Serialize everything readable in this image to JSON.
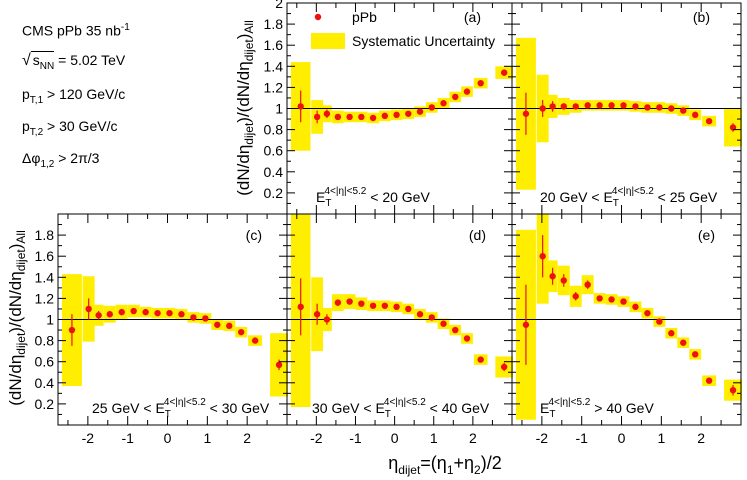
{
  "figure": {
    "experiment": "CMS",
    "system": "pPb",
    "luminosity": "35",
    "lumi_unit": "nb",
    "lumi_exp": "-1",
    "energy_label": "s",
    "energy_sub": "NN",
    "energy_value": "= 5.02 TeV",
    "cut1_label": "p",
    "cut1_sub": "T,1",
    "cut1_value": "> 120 GeV/c",
    "cut2_label": "p",
    "cut2_sub": "T,2",
    "cut2_value": "> 30 GeV/c",
    "cut3_label": "Δφ",
    "cut3_sub": "1,2",
    "cut3_value": "> 2π/3",
    "legend": {
      "marker_label": "pPb",
      "band_label": "Systematic Uncertainty"
    },
    "ylabel": {
      "main": "(dN/dη",
      "sub1": "dijet",
      "mid": ")/(dN/dη",
      "sub2": "dijet",
      "end": ")",
      "sub3": "All"
    },
    "xlabel": {
      "eta": "η",
      "sub": "dijet",
      "rest": "=(η",
      "s1": "1",
      "plus": "+η",
      "s2": "2",
      "end": ")/2"
    }
  },
  "chart_data": [
    {
      "type": "scatter",
      "panel": "(a)",
      "label_lo": "",
      "label_hi": "< 20 GeV",
      "et_sup": "4<|η|<5.2",
      "xlim": [
        -2.75,
        3.0
      ],
      "ylim": [
        0,
        2.0
      ],
      "yticks": [
        0.2,
        0.4,
        0.6,
        0.8,
        1,
        1.2,
        1.4,
        1.6,
        1.8,
        2
      ],
      "xticks": [
        -2,
        -1,
        0,
        1,
        2
      ],
      "points": [
        {
          "x": -2.4,
          "y": 1.02,
          "stat": 0.15,
          "sys": 0.42,
          "w": 0.5
        },
        {
          "x": -1.98,
          "y": 0.92,
          "stat": 0.06,
          "sys": 0.16,
          "w": 0.3
        },
        {
          "x": -1.73,
          "y": 0.95,
          "stat": 0.04,
          "sys": 0.08,
          "w": 0.25
        },
        {
          "x": -1.45,
          "y": 0.92,
          "stat": 0.02,
          "sys": 0.06,
          "w": 0.3
        },
        {
          "x": -1.15,
          "y": 0.92,
          "stat": 0.02,
          "sys": 0.05,
          "w": 0.3
        },
        {
          "x": -0.85,
          "y": 0.92,
          "stat": 0.02,
          "sys": 0.05,
          "w": 0.3
        },
        {
          "x": -0.55,
          "y": 0.91,
          "stat": 0.02,
          "sys": 0.05,
          "w": 0.3
        },
        {
          "x": -0.25,
          "y": 0.93,
          "stat": 0.02,
          "sys": 0.05,
          "w": 0.3
        },
        {
          "x": 0.05,
          "y": 0.94,
          "stat": 0.02,
          "sys": 0.05,
          "w": 0.3
        },
        {
          "x": 0.35,
          "y": 0.95,
          "stat": 0.02,
          "sys": 0.05,
          "w": 0.3
        },
        {
          "x": 0.65,
          "y": 0.97,
          "stat": 0.02,
          "sys": 0.05,
          "w": 0.3
        },
        {
          "x": 0.95,
          "y": 1.01,
          "stat": 0.02,
          "sys": 0.05,
          "w": 0.3
        },
        {
          "x": 1.25,
          "y": 1.05,
          "stat": 0.02,
          "sys": 0.05,
          "w": 0.3
        },
        {
          "x": 1.55,
          "y": 1.11,
          "stat": 0.02,
          "sys": 0.05,
          "w": 0.3
        },
        {
          "x": 1.85,
          "y": 1.16,
          "stat": 0.02,
          "sys": 0.05,
          "w": 0.3
        },
        {
          "x": 2.2,
          "y": 1.24,
          "stat": 0.02,
          "sys": 0.05,
          "w": 0.35
        },
        {
          "x": 2.8,
          "y": 1.34,
          "stat": 0.03,
          "sys": 0.06,
          "w": 0.45
        }
      ]
    },
    {
      "type": "scatter",
      "panel": "(b)",
      "label_lo": "20 GeV <",
      "label_hi": "< 25 GeV",
      "et_sup": "4<|η|<5.2",
      "xlim": [
        -2.75,
        3.0
      ],
      "ylim": [
        0,
        2.0
      ],
      "yticks": [],
      "xticks": [
        -2,
        -1,
        0,
        1,
        2
      ],
      "points": [
        {
          "x": -2.4,
          "y": 0.95,
          "stat": 0.2,
          "sys": 0.72,
          "w": 0.5
        },
        {
          "x": -1.98,
          "y": 1.0,
          "stat": 0.08,
          "sys": 0.32,
          "w": 0.3
        },
        {
          "x": -1.73,
          "y": 1.02,
          "stat": 0.05,
          "sys": 0.11,
          "w": 0.25
        },
        {
          "x": -1.45,
          "y": 1.02,
          "stat": 0.03,
          "sys": 0.08,
          "w": 0.3
        },
        {
          "x": -1.15,
          "y": 1.02,
          "stat": 0.02,
          "sys": 0.06,
          "w": 0.3
        },
        {
          "x": -0.85,
          "y": 1.03,
          "stat": 0.02,
          "sys": 0.05,
          "w": 0.3
        },
        {
          "x": -0.55,
          "y": 1.03,
          "stat": 0.02,
          "sys": 0.05,
          "w": 0.3
        },
        {
          "x": -0.25,
          "y": 1.03,
          "stat": 0.02,
          "sys": 0.05,
          "w": 0.3
        },
        {
          "x": 0.05,
          "y": 1.03,
          "stat": 0.02,
          "sys": 0.05,
          "w": 0.3
        },
        {
          "x": 0.35,
          "y": 1.02,
          "stat": 0.02,
          "sys": 0.05,
          "w": 0.3
        },
        {
          "x": 0.65,
          "y": 1.01,
          "stat": 0.02,
          "sys": 0.05,
          "w": 0.3
        },
        {
          "x": 0.95,
          "y": 1.01,
          "stat": 0.02,
          "sys": 0.05,
          "w": 0.3
        },
        {
          "x": 1.25,
          "y": 1.0,
          "stat": 0.02,
          "sys": 0.05,
          "w": 0.3
        },
        {
          "x": 1.55,
          "y": 0.98,
          "stat": 0.02,
          "sys": 0.05,
          "w": 0.3
        },
        {
          "x": 1.85,
          "y": 0.94,
          "stat": 0.02,
          "sys": 0.05,
          "w": 0.3
        },
        {
          "x": 2.2,
          "y": 0.88,
          "stat": 0.02,
          "sys": 0.05,
          "w": 0.35
        },
        {
          "x": 2.8,
          "y": 0.82,
          "stat": 0.04,
          "sys": 0.18,
          "w": 0.45
        }
      ]
    },
    {
      "type": "scatter",
      "panel": "(c)",
      "label_lo": "25 GeV <",
      "label_hi": "< 30 GeV",
      "et_sup": "4<|η|<5.2",
      "xlim": [
        -2.75,
        3.0
      ],
      "ylim": [
        0,
        2.0
      ],
      "yticks": [
        0.2,
        0.4,
        0.6,
        0.8,
        1,
        1.2,
        1.4,
        1.6,
        1.8
      ],
      "xticks": [
        -2,
        -1,
        0,
        1,
        2
      ],
      "points": [
        {
          "x": -2.4,
          "y": 0.9,
          "stat": 0.15,
          "sys": 0.53,
          "w": 0.5
        },
        {
          "x": -1.98,
          "y": 1.1,
          "stat": 0.1,
          "sys": 0.31,
          "w": 0.3
        },
        {
          "x": -1.73,
          "y": 1.04,
          "stat": 0.04,
          "sys": 0.1,
          "w": 0.25
        },
        {
          "x": -1.45,
          "y": 1.05,
          "stat": 0.03,
          "sys": 0.08,
          "w": 0.3
        },
        {
          "x": -1.15,
          "y": 1.07,
          "stat": 0.02,
          "sys": 0.07,
          "w": 0.3
        },
        {
          "x": -0.85,
          "y": 1.08,
          "stat": 0.02,
          "sys": 0.06,
          "w": 0.3
        },
        {
          "x": -0.55,
          "y": 1.07,
          "stat": 0.02,
          "sys": 0.05,
          "w": 0.3
        },
        {
          "x": -0.25,
          "y": 1.06,
          "stat": 0.02,
          "sys": 0.05,
          "w": 0.3
        },
        {
          "x": 0.05,
          "y": 1.06,
          "stat": 0.02,
          "sys": 0.05,
          "w": 0.3
        },
        {
          "x": 0.35,
          "y": 1.05,
          "stat": 0.02,
          "sys": 0.05,
          "w": 0.3
        },
        {
          "x": 0.65,
          "y": 1.02,
          "stat": 0.02,
          "sys": 0.05,
          "w": 0.3
        },
        {
          "x": 0.95,
          "y": 1.01,
          "stat": 0.02,
          "sys": 0.05,
          "w": 0.3
        },
        {
          "x": 1.25,
          "y": 0.95,
          "stat": 0.02,
          "sys": 0.05,
          "w": 0.3
        },
        {
          "x": 1.55,
          "y": 0.94,
          "stat": 0.02,
          "sys": 0.05,
          "w": 0.3
        },
        {
          "x": 1.85,
          "y": 0.88,
          "stat": 0.02,
          "sys": 0.05,
          "w": 0.3
        },
        {
          "x": 2.2,
          "y": 0.8,
          "stat": 0.02,
          "sys": 0.05,
          "w": 0.35
        },
        {
          "x": 2.8,
          "y": 0.57,
          "stat": 0.05,
          "sys": 0.3,
          "w": 0.45
        }
      ]
    },
    {
      "type": "scatter",
      "panel": "(d)",
      "label_lo": "30 GeV <",
      "label_hi": "< 40 GeV",
      "et_sup": "4<|η|<5.2",
      "xlim": [
        -2.75,
        3.0
      ],
      "ylim": [
        0,
        2.0
      ],
      "yticks": [],
      "xticks": [
        -2,
        -1,
        0,
        1,
        2
      ],
      "points": [
        {
          "x": -2.4,
          "y": 1.12,
          "stat": 0.27,
          "sys": 0.95,
          "w": 0.5
        },
        {
          "x": -1.98,
          "y": 1.05,
          "stat": 0.1,
          "sys": 0.35,
          "w": 0.3
        },
        {
          "x": -1.73,
          "y": 1.0,
          "stat": 0.05,
          "sys": 0.11,
          "w": 0.25
        },
        {
          "x": -1.45,
          "y": 1.16,
          "stat": 0.03,
          "sys": 0.08,
          "w": 0.3
        },
        {
          "x": -1.15,
          "y": 1.17,
          "stat": 0.02,
          "sys": 0.07,
          "w": 0.3
        },
        {
          "x": -0.85,
          "y": 1.15,
          "stat": 0.02,
          "sys": 0.06,
          "w": 0.3
        },
        {
          "x": -0.55,
          "y": 1.13,
          "stat": 0.02,
          "sys": 0.05,
          "w": 0.3
        },
        {
          "x": -0.25,
          "y": 1.13,
          "stat": 0.02,
          "sys": 0.05,
          "w": 0.3
        },
        {
          "x": 0.05,
          "y": 1.12,
          "stat": 0.02,
          "sys": 0.05,
          "w": 0.3
        },
        {
          "x": 0.35,
          "y": 1.1,
          "stat": 0.02,
          "sys": 0.05,
          "w": 0.3
        },
        {
          "x": 0.65,
          "y": 1.05,
          "stat": 0.02,
          "sys": 0.05,
          "w": 0.3
        },
        {
          "x": 0.95,
          "y": 1.02,
          "stat": 0.02,
          "sys": 0.05,
          "w": 0.3
        },
        {
          "x": 1.25,
          "y": 0.96,
          "stat": 0.02,
          "sys": 0.05,
          "w": 0.3
        },
        {
          "x": 1.55,
          "y": 0.9,
          "stat": 0.02,
          "sys": 0.05,
          "w": 0.3
        },
        {
          "x": 1.85,
          "y": 0.82,
          "stat": 0.02,
          "sys": 0.05,
          "w": 0.3
        },
        {
          "x": 2.2,
          "y": 0.62,
          "stat": 0.02,
          "sys": 0.05,
          "w": 0.35
        },
        {
          "x": 2.8,
          "y": 0.55,
          "stat": 0.04,
          "sys": 0.1,
          "w": 0.45
        }
      ]
    },
    {
      "type": "scatter",
      "panel": "(e)",
      "label_lo": "",
      "label_hi": "> 40 GeV",
      "et_sup": "4<|η|<5.2",
      "xlim": [
        -2.75,
        3.0
      ],
      "ylim": [
        0,
        2.0
      ],
      "yticks": [],
      "xticks": [
        -2,
        -1,
        0,
        1,
        2
      ],
      "points": [
        {
          "x": -2.4,
          "y": 0.95,
          "stat": 0.38,
          "sys": 0.9,
          "w": 0.5
        },
        {
          "x": -1.98,
          "y": 1.6,
          "stat": 0.2,
          "sys": 0.45,
          "w": 0.3
        },
        {
          "x": -1.73,
          "y": 1.41,
          "stat": 0.08,
          "sys": 0.15,
          "w": 0.25
        },
        {
          "x": -1.45,
          "y": 1.37,
          "stat": 0.06,
          "sys": 0.14,
          "w": 0.3
        },
        {
          "x": -1.15,
          "y": 1.22,
          "stat": 0.04,
          "sys": 0.1,
          "w": 0.3
        },
        {
          "x": -0.85,
          "y": 1.33,
          "stat": 0.04,
          "sys": 0.09,
          "w": 0.3
        },
        {
          "x": -0.55,
          "y": 1.2,
          "stat": 0.02,
          "sys": 0.05,
          "w": 0.3
        },
        {
          "x": -0.25,
          "y": 1.19,
          "stat": 0.02,
          "sys": 0.05,
          "w": 0.3
        },
        {
          "x": 0.05,
          "y": 1.17,
          "stat": 0.02,
          "sys": 0.05,
          "w": 0.3
        },
        {
          "x": 0.35,
          "y": 1.12,
          "stat": 0.02,
          "sys": 0.05,
          "w": 0.3
        },
        {
          "x": 0.65,
          "y": 1.06,
          "stat": 0.02,
          "sys": 0.05,
          "w": 0.3
        },
        {
          "x": 0.95,
          "y": 0.98,
          "stat": 0.02,
          "sys": 0.05,
          "w": 0.3
        },
        {
          "x": 1.25,
          "y": 0.87,
          "stat": 0.02,
          "sys": 0.05,
          "w": 0.3
        },
        {
          "x": 1.55,
          "y": 0.78,
          "stat": 0.02,
          "sys": 0.05,
          "w": 0.3
        },
        {
          "x": 1.85,
          "y": 0.67,
          "stat": 0.02,
          "sys": 0.05,
          "w": 0.3
        },
        {
          "x": 2.2,
          "y": 0.42,
          "stat": 0.02,
          "sys": 0.05,
          "w": 0.35
        },
        {
          "x": 2.8,
          "y": 0.33,
          "stat": 0.05,
          "sys": 0.1,
          "w": 0.45
        }
      ]
    }
  ]
}
